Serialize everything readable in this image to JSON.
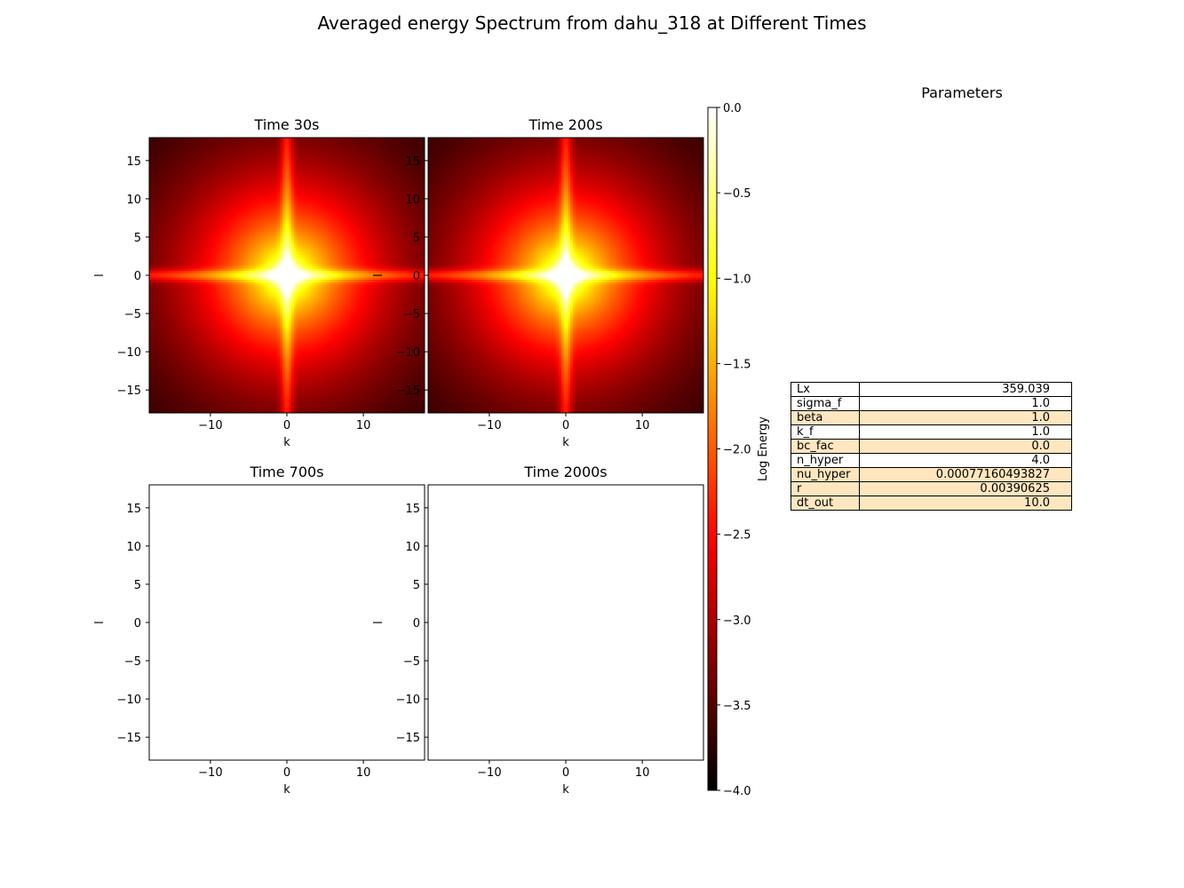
{
  "figure": {
    "title": "Averaged energy Spectrum from dahu_318 at Different Times"
  },
  "chart_data": {
    "type": "heatmap",
    "colormap": "hot",
    "colorbar": {
      "label": "Log Energy",
      "vmin": -4.0,
      "vmax": 0.0,
      "ticks": [
        "0.0",
        "−0.5",
        "−1.0",
        "−1.5",
        "−2.0",
        "−2.5",
        "−3.0",
        "−3.5",
        "−4.0"
      ],
      "tick_values": [
        0.0,
        -0.5,
        -1.0,
        -1.5,
        -2.0,
        -2.5,
        -3.0,
        -3.5,
        -4.0
      ]
    },
    "panels": [
      {
        "title": "Time 30s",
        "xlabel": "k",
        "ylabel": "l",
        "has_data": true
      },
      {
        "title": "Time 200s",
        "xlabel": "k",
        "ylabel": "l",
        "has_data": true
      },
      {
        "title": "Time 700s",
        "xlabel": "k",
        "ylabel": "l",
        "has_data": false
      },
      {
        "title": "Time 2000s",
        "xlabel": "k",
        "ylabel": "l",
        "has_data": false
      }
    ],
    "xlim": [
      -18,
      18
    ],
    "ylim": [
      -18,
      18
    ],
    "xticks": [
      -10,
      0,
      10
    ],
    "xtick_labels": [
      "−10",
      "0",
      "10"
    ],
    "yticks": [
      15,
      10,
      5,
      0,
      -5,
      -10,
      -15
    ],
    "ytick_labels": [
      "15",
      "10",
      "5",
      "0",
      "−5",
      "−10",
      "−15"
    ],
    "spectrum_model": {
      "peak_log_energy": 0.0,
      "axis_ridge": true
    }
  },
  "parameters": {
    "title": "Parameters",
    "rows": [
      {
        "key": "Lx",
        "value": "359.039"
      },
      {
        "key": "sigma_f",
        "value": "1.0"
      },
      {
        "key": "beta",
        "value": "1.0"
      },
      {
        "key": "k_f",
        "value": "1.0"
      },
      {
        "key": "bc_fac",
        "value": "0.0"
      },
      {
        "key": "n_hyper",
        "value": "4.0"
      },
      {
        "key": "nu_hyper",
        "value": "0.00077160493827"
      },
      {
        "key": "r",
        "value": "0.00390625"
      },
      {
        "key": "dt_out",
        "value": "10.0"
      }
    ]
  }
}
